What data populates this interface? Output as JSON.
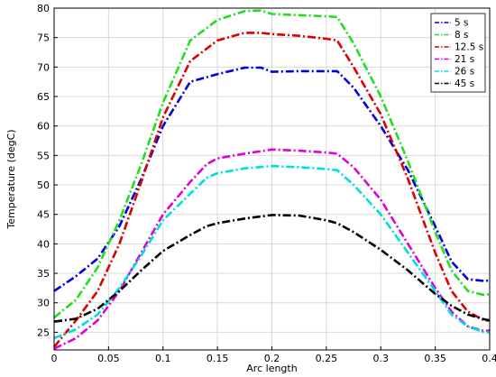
{
  "chart_data": {
    "type": "line",
    "xlabel": "Arc length",
    "ylabel": "Temperature (degC)",
    "xlim": [
      0,
      0.4
    ],
    "ylim": [
      22,
      80
    ],
    "xticks": [
      "0",
      "0.05",
      "0.1",
      "0.15",
      "0.2",
      "0.25",
      "0.3",
      "0.35",
      "0.4"
    ],
    "yticks": [
      "25",
      "30",
      "35",
      "40",
      "45",
      "50",
      "55",
      "60",
      "65",
      "70",
      "75",
      "80"
    ],
    "grid": true,
    "legend_position": "top-right",
    "series": [
      {
        "name": "5 s",
        "color": "#0000dd",
        "points": [
          [
            0,
            32.0
          ],
          [
            0.02,
            34.5
          ],
          [
            0.04,
            37.5
          ],
          [
            0.06,
            43.0
          ],
          [
            0.08,
            51.0
          ],
          [
            0.1,
            60.0
          ],
          [
            0.125,
            67.5
          ],
          [
            0.15,
            68.8
          ],
          [
            0.175,
            69.9
          ],
          [
            0.19,
            69.9
          ],
          [
            0.2,
            69.2
          ],
          [
            0.225,
            69.3
          ],
          [
            0.25,
            69.3
          ],
          [
            0.26,
            69.3
          ],
          [
            0.275,
            66.5
          ],
          [
            0.3,
            60.0
          ],
          [
            0.325,
            52.5
          ],
          [
            0.35,
            43.0
          ],
          [
            0.365,
            37.0
          ],
          [
            0.38,
            34.0
          ],
          [
            0.395,
            33.7
          ],
          [
            0.4,
            33.8
          ]
        ]
      },
      {
        "name": "8 s",
        "color": "#22dd22",
        "points": [
          [
            0,
            27.5
          ],
          [
            0.02,
            30.5
          ],
          [
            0.04,
            36.0
          ],
          [
            0.06,
            44.0
          ],
          [
            0.08,
            53.5
          ],
          [
            0.1,
            64.0
          ],
          [
            0.125,
            74.5
          ],
          [
            0.15,
            78.0
          ],
          [
            0.175,
            79.5
          ],
          [
            0.19,
            79.6
          ],
          [
            0.2,
            79.0
          ],
          [
            0.225,
            78.8
          ],
          [
            0.25,
            78.6
          ],
          [
            0.26,
            78.5
          ],
          [
            0.275,
            74.0
          ],
          [
            0.3,
            65.0
          ],
          [
            0.325,
            54.0
          ],
          [
            0.35,
            42.0
          ],
          [
            0.365,
            35.5
          ],
          [
            0.38,
            32.0
          ],
          [
            0.395,
            31.3
          ],
          [
            0.4,
            31.5
          ]
        ]
      },
      {
        "name": "12.5 s",
        "color": "#dd0000",
        "points": [
          [
            0,
            22.5
          ],
          [
            0.02,
            27.0
          ],
          [
            0.04,
            32.0
          ],
          [
            0.06,
            40.0
          ],
          [
            0.08,
            50.5
          ],
          [
            0.1,
            61.5
          ],
          [
            0.125,
            71.0
          ],
          [
            0.15,
            74.5
          ],
          [
            0.175,
            75.8
          ],
          [
            0.19,
            75.8
          ],
          [
            0.2,
            75.6
          ],
          [
            0.225,
            75.3
          ],
          [
            0.25,
            74.8
          ],
          [
            0.26,
            74.5
          ],
          [
            0.275,
            70.0
          ],
          [
            0.3,
            62.0
          ],
          [
            0.325,
            51.0
          ],
          [
            0.35,
            38.5
          ],
          [
            0.365,
            32.0
          ],
          [
            0.38,
            28.5
          ],
          [
            0.395,
            27.0
          ],
          [
            0.4,
            27.0
          ]
        ]
      },
      {
        "name": "21 s",
        "color": "#dd00dd",
        "points": [
          [
            0,
            22.2
          ],
          [
            0.02,
            24.0
          ],
          [
            0.04,
            27.0
          ],
          [
            0.06,
            32.0
          ],
          [
            0.08,
            38.5
          ],
          [
            0.1,
            45.0
          ],
          [
            0.125,
            50.5
          ],
          [
            0.14,
            53.5
          ],
          [
            0.15,
            54.5
          ],
          [
            0.175,
            55.3
          ],
          [
            0.2,
            56.0
          ],
          [
            0.225,
            55.8
          ],
          [
            0.25,
            55.5
          ],
          [
            0.26,
            55.3
          ],
          [
            0.275,
            53.0
          ],
          [
            0.3,
            47.5
          ],
          [
            0.325,
            40.0
          ],
          [
            0.35,
            32.5
          ],
          [
            0.365,
            28.5
          ],
          [
            0.38,
            26.0
          ],
          [
            0.395,
            25.2
          ],
          [
            0.4,
            25.3
          ]
        ]
      },
      {
        "name": "26 s",
        "color": "#00dddd",
        "points": [
          [
            0,
            24.0
          ],
          [
            0.02,
            25.5
          ],
          [
            0.04,
            28.0
          ],
          [
            0.06,
            32.5
          ],
          [
            0.08,
            38.0
          ],
          [
            0.1,
            44.0
          ],
          [
            0.125,
            48.5
          ],
          [
            0.14,
            51.2
          ],
          [
            0.15,
            52.0
          ],
          [
            0.175,
            52.8
          ],
          [
            0.2,
            53.2
          ],
          [
            0.225,
            53.0
          ],
          [
            0.25,
            52.7
          ],
          [
            0.26,
            52.5
          ],
          [
            0.275,
            50.0
          ],
          [
            0.3,
            45.0
          ],
          [
            0.325,
            38.5
          ],
          [
            0.35,
            32.0
          ],
          [
            0.365,
            28.0
          ],
          [
            0.38,
            26.0
          ],
          [
            0.395,
            25.0
          ],
          [
            0.4,
            25.0
          ]
        ]
      },
      {
        "name": "45 s",
        "color": "#000000",
        "points": [
          [
            0,
            26.8
          ],
          [
            0.02,
            27.3
          ],
          [
            0.04,
            29.0
          ],
          [
            0.06,
            32.0
          ],
          [
            0.08,
            35.5
          ],
          [
            0.1,
            38.8
          ],
          [
            0.125,
            41.5
          ],
          [
            0.14,
            43.0
          ],
          [
            0.15,
            43.5
          ],
          [
            0.175,
            44.3
          ],
          [
            0.2,
            44.9
          ],
          [
            0.225,
            44.8
          ],
          [
            0.25,
            44.0
          ],
          [
            0.26,
            43.5
          ],
          [
            0.275,
            42.0
          ],
          [
            0.3,
            39.0
          ],
          [
            0.325,
            35.5
          ],
          [
            0.35,
            31.5
          ],
          [
            0.365,
            29.5
          ],
          [
            0.38,
            28.0
          ],
          [
            0.395,
            27.2
          ],
          [
            0.4,
            27.0
          ]
        ]
      }
    ]
  }
}
